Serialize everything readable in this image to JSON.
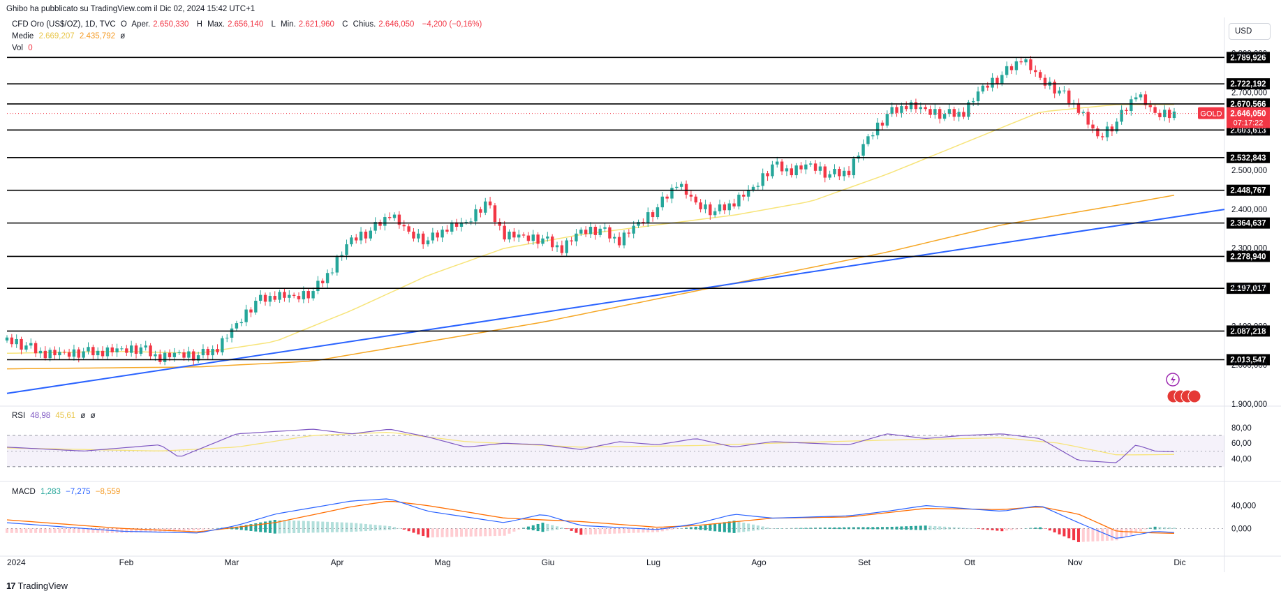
{
  "header": {
    "published": "Ghibo ha pubblicato su TradingView.com il Dic 02, 2024 15:42 UTC+1"
  },
  "symbol_legend": {
    "name": "CFD Oro (US$/OZ), 1D, TVC",
    "o_label": "O",
    "o_prefix": "Aper.",
    "o_value": "2.650,330",
    "h_label": "H",
    "h_prefix": "Max.",
    "h_value": "2.656,140",
    "l_label": "L",
    "l_prefix": "Min.",
    "l_value": "2.621,960",
    "c_label": "C",
    "c_prefix": "Chius.",
    "c_value": "2.646,050",
    "change": "−4,200 (−0,16%)"
  },
  "ma_legend": {
    "label": "Medie",
    "ma1": "2.669,207",
    "ma2": "2.435,792",
    "extra": "ø"
  },
  "vol_legend": {
    "label": "Vol",
    "value": "0"
  },
  "currency_button": "USD",
  "price_badge": {
    "symbol": "GOLD",
    "price": "2.646,050",
    "countdown": "07:17:22"
  },
  "rsi_legend": {
    "label": "RSI",
    "v1": "48,98",
    "v2": "45,61",
    "x1": "ø",
    "x2": "ø"
  },
  "macd_legend": {
    "label": "MACD",
    "v1": "1,283",
    "v2": "−7,275",
    "v3": "−8,559"
  },
  "footer": {
    "brand": "TradingView",
    "logo_text": "17"
  },
  "colors": {
    "up": "#26a69a",
    "down": "#f23645",
    "ma50": "#f7e479",
    "ma200": "#f5a623",
    "trend": "#2962ff",
    "rsi": "#7e57c2",
    "macd": "#2962ff",
    "signal": "#ff6d00"
  },
  "chart_data": [
    {
      "type": "candlestick",
      "instrument": "CFD Oro (US$/OZ)",
      "timeframe": "1D",
      "x_labels": [
        "2024",
        "Feb",
        "Mar",
        "Apr",
        "Mag",
        "Giu",
        "Lug",
        "Ago",
        "Set",
        "Ott",
        "Nov",
        "Dic"
      ],
      "y_ticks": [
        "2.800,000",
        "2.700,000",
        "2.600,000",
        "2.500,000",
        "2.400,000",
        "2.300,000",
        "2.200,000",
        "2.100,000",
        "2.000,000",
        "1.900,000"
      ],
      "ylim": [
        1880,
        2830
      ],
      "last_price": 2646.05,
      "horizontal_levels": [
        {
          "value": 2789.926,
          "label": "2.789,926"
        },
        {
          "value": 2722.192,
          "label": "2.722,192"
        },
        {
          "value": 2670.566,
          "label": "2.670,566"
        },
        {
          "value": 2603.613,
          "label": "2.603,613"
        },
        {
          "value": 2532.843,
          "label": "2.532,843"
        },
        {
          "value": 2448.767,
          "label": "2.448,767"
        },
        {
          "value": 2364.637,
          "label": "2.364,637"
        },
        {
          "value": 2278.94,
          "label": "2.278,940"
        },
        {
          "value": 2197.017,
          "label": "2.197,017"
        },
        {
          "value": 2087.218,
          "label": "2.087,218"
        },
        {
          "value": 2013.547,
          "label": "2.013,547"
        }
      ],
      "trendline": {
        "from": [
          "2024",
          1927
        ],
        "to": [
          "Dic",
          2380
        ]
      },
      "weekly_close_path": [
        [
          0,
          2063
        ],
        [
          1,
          2045
        ],
        [
          2,
          2030
        ],
        [
          3,
          2025
        ],
        [
          4,
          2030
        ],
        [
          5,
          2035
        ],
        [
          6,
          2035
        ],
        [
          7,
          2040
        ],
        [
          8,
          2020
        ],
        [
          9,
          2025
        ],
        [
          10,
          2020
        ],
        [
          11,
          2045
        ],
        [
          12,
          2100
        ],
        [
          13,
          2160
        ],
        [
          14,
          2180
        ],
        [
          15,
          2170
        ],
        [
          16,
          2185
        ],
        [
          17,
          2250
        ],
        [
          18,
          2320
        ],
        [
          19,
          2340
        ],
        [
          20,
          2390
        ],
        [
          21,
          2335
        ],
        [
          22,
          2315
        ],
        [
          23,
          2355
        ],
        [
          24,
          2360
        ],
        [
          25,
          2415
        ],
        [
          26,
          2335
        ],
        [
          27,
          2325
        ],
        [
          28,
          2320
        ],
        [
          29,
          2300
        ],
        [
          30,
          2340
        ],
        [
          31,
          2345
        ],
        [
          32,
          2320
        ],
        [
          33,
          2360
        ],
        [
          34,
          2400
        ],
        [
          35,
          2470
        ],
        [
          36,
          2410
        ],
        [
          37,
          2390
        ],
        [
          38,
          2420
        ],
        [
          39,
          2450
        ],
        [
          40,
          2510
        ],
        [
          41,
          2500
        ],
        [
          42,
          2510
        ],
        [
          43,
          2485
        ],
        [
          44,
          2500
        ],
        [
          45,
          2580
        ],
        [
          46,
          2640
        ],
        [
          47,
          2670
        ],
        [
          48,
          2650
        ],
        [
          49,
          2640
        ],
        [
          50,
          2650
        ],
        [
          51,
          2710
        ],
        [
          52,
          2740
        ],
        [
          53,
          2790
        ],
        [
          54,
          2730
        ],
        [
          55,
          2700
        ],
        [
          56,
          2660
        ],
        [
          57,
          2580
        ],
        [
          58,
          2620
        ],
        [
          59,
          2700
        ],
        [
          60,
          2640
        ],
        [
          61,
          2646
        ]
      ],
      "ma50_path": [
        [
          0,
          2030
        ],
        [
          6,
          2035
        ],
        [
          10,
          2030
        ],
        [
          14,
          2060
        ],
        [
          18,
          2140
        ],
        [
          22,
          2230
        ],
        [
          26,
          2300
        ],
        [
          30,
          2335
        ],
        [
          34,
          2360
        ],
        [
          38,
          2385
        ],
        [
          42,
          2420
        ],
        [
          46,
          2490
        ],
        [
          50,
          2570
        ],
        [
          54,
          2650
        ],
        [
          58,
          2669
        ],
        [
          61,
          2669
        ]
      ],
      "ma200_path": [
        [
          0,
          1990
        ],
        [
          10,
          1995
        ],
        [
          16,
          2010
        ],
        [
          22,
          2060
        ],
        [
          28,
          2110
        ],
        [
          34,
          2170
        ],
        [
          40,
          2230
        ],
        [
          46,
          2290
        ],
        [
          52,
          2360
        ],
        [
          58,
          2410
        ],
        [
          61,
          2436
        ]
      ]
    },
    {
      "type": "line",
      "name": "RSI",
      "y_ticks": [
        "80,00",
        "60,00",
        "40,00"
      ],
      "bands": [
        70,
        30
      ],
      "last": 48.98,
      "signal_last": 45.61,
      "path": [
        [
          0,
          55
        ],
        [
          4,
          50
        ],
        [
          8,
          58
        ],
        [
          9,
          42
        ],
        [
          12,
          72
        ],
        [
          14,
          75
        ],
        [
          16,
          78
        ],
        [
          18,
          72
        ],
        [
          20,
          78
        ],
        [
          22,
          68
        ],
        [
          24,
          55
        ],
        [
          26,
          60
        ],
        [
          28,
          58
        ],
        [
          30,
          52
        ],
        [
          32,
          62
        ],
        [
          34,
          58
        ],
        [
          36,
          66
        ],
        [
          38,
          55
        ],
        [
          40,
          62
        ],
        [
          42,
          60
        ],
        [
          44,
          58
        ],
        [
          46,
          72
        ],
        [
          48,
          66
        ],
        [
          50,
          70
        ],
        [
          52,
          72
        ],
        [
          54,
          66
        ],
        [
          56,
          38
        ],
        [
          58,
          35
        ],
        [
          59,
          58
        ],
        [
          60,
          50
        ],
        [
          61,
          49
        ]
      ],
      "signal_path": [
        [
          0,
          54
        ],
        [
          8,
          50
        ],
        [
          12,
          55
        ],
        [
          16,
          70
        ],
        [
          20,
          74
        ],
        [
          24,
          62
        ],
        [
          30,
          55
        ],
        [
          36,
          57
        ],
        [
          40,
          60
        ],
        [
          46,
          64
        ],
        [
          52,
          67
        ],
        [
          55,
          60
        ],
        [
          58,
          45
        ],
        [
          61,
          45.6
        ]
      ]
    },
    {
      "type": "bar+line",
      "name": "MACD",
      "y_ticks": [
        "40,000",
        "0,000"
      ],
      "last": 1.283,
      "macd_last": -7.275,
      "signal_last": -8.559,
      "macd_path": [
        [
          0,
          10
        ],
        [
          6,
          -5
        ],
        [
          10,
          -8
        ],
        [
          12,
          5
        ],
        [
          14,
          25
        ],
        [
          18,
          48
        ],
        [
          20,
          52
        ],
        [
          22,
          30
        ],
        [
          26,
          10
        ],
        [
          28,
          25
        ],
        [
          30,
          5
        ],
        [
          34,
          -2
        ],
        [
          36,
          8
        ],
        [
          38,
          25
        ],
        [
          40,
          18
        ],
        [
          44,
          22
        ],
        [
          46,
          30
        ],
        [
          48,
          40
        ],
        [
          50,
          35
        ],
        [
          52,
          30
        ],
        [
          54,
          40
        ],
        [
          56,
          10
        ],
        [
          58,
          -18
        ],
        [
          60,
          -5
        ],
        [
          61,
          -7.3
        ]
      ],
      "signal_path": [
        [
          0,
          15
        ],
        [
          6,
          0
        ],
        [
          10,
          -6
        ],
        [
          14,
          10
        ],
        [
          18,
          38
        ],
        [
          20,
          48
        ],
        [
          22,
          40
        ],
        [
          26,
          18
        ],
        [
          30,
          12
        ],
        [
          34,
          2
        ],
        [
          36,
          5
        ],
        [
          40,
          18
        ],
        [
          44,
          20
        ],
        [
          48,
          35
        ],
        [
          52,
          33
        ],
        [
          54,
          38
        ],
        [
          56,
          25
        ],
        [
          58,
          -5
        ],
        [
          60,
          -8
        ],
        [
          61,
          -8.6
        ]
      ]
    }
  ]
}
